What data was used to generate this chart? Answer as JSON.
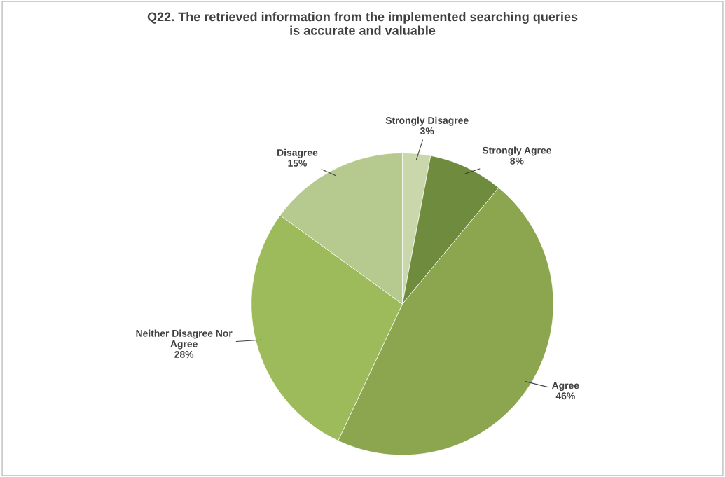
{
  "chart_data": {
    "type": "pie",
    "title": "Q22. The retrieved information from the implemented searching queries\nis accurate and valuable",
    "categories": [
      "Strongly Disagree",
      "Strongly Agree",
      "Agree",
      "Neither Disagree Nor\nAgree",
      "Disagree"
    ],
    "values": [
      3,
      8,
      46,
      28,
      15
    ],
    "colors": [
      "#c9d7ab",
      "#6f8c3e",
      "#8ba64f",
      "#9dbb5b",
      "#b6c98f"
    ],
    "value_labels": [
      "3%",
      "8%",
      "46%",
      "28%",
      "15%"
    ],
    "legend": false
  }
}
